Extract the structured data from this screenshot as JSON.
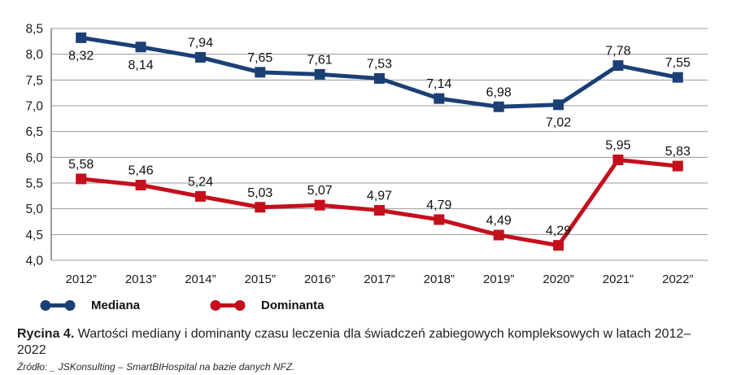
{
  "figure": {
    "caption_prefix": "Rycina 4.",
    "caption_text": " Wartości mediany i dominanty czasu leczenia dla świadczeń zabiegowych kompleksowych w latach 2012–2022",
    "source": "Źródło: _ JSKonsulting – SmartBIHospital na bazie danych NFZ."
  },
  "legend": {
    "items": [
      {
        "label": "Mediana",
        "color": "#1b4075"
      },
      {
        "label": "Dominanta",
        "color": "#c4101c"
      }
    ]
  },
  "chart_data": {
    "type": "line",
    "title": "",
    "categories": [
      "2012”",
      "2013”",
      "2014”",
      "2015”",
      "2016”",
      "2017”",
      "2018”",
      "2019”",
      "2020”",
      "2021”",
      "2022”"
    ],
    "series": [
      {
        "name": "Mediana",
        "color": "#1b4075",
        "marker": "square",
        "values": [
          8.32,
          8.14,
          7.94,
          7.65,
          7.61,
          7.53,
          7.14,
          6.98,
          7.02,
          7.78,
          7.55
        ],
        "labels": [
          "8,32",
          "8,14",
          "7,94",
          "7,65",
          "7,61",
          "7,53",
          "7,14",
          "6,98",
          "7,02",
          "7,78",
          "7,55"
        ],
        "labels_below_indices": [
          0,
          1,
          8
        ]
      },
      {
        "name": "Dominanta",
        "color": "#c4101c",
        "marker": "square",
        "values": [
          5.58,
          5.46,
          5.24,
          5.03,
          5.07,
          4.97,
          4.79,
          4.49,
          4.29,
          5.95,
          5.83
        ],
        "labels": [
          "5,58",
          "5,46",
          "5,24",
          "5,03",
          "5,07",
          "4,97",
          "4,79",
          "4,49",
          "4,29",
          "5,95",
          "5,83"
        ],
        "labels_below_indices": []
      }
    ],
    "y_axis": {
      "min": 4.0,
      "max": 8.5,
      "step": 0.5,
      "tick_labels": [
        "8,5",
        "8,0",
        "7,5",
        "7,0",
        "6,5",
        "6,0",
        "5,5",
        "5,0",
        "4,5",
        "4,0"
      ]
    },
    "x_axis": {
      "label": ""
    },
    "grid": true,
    "grid_color": "#9a9a9a",
    "axis_color": "#7f7f7f",
    "legend_position": "bottom"
  }
}
